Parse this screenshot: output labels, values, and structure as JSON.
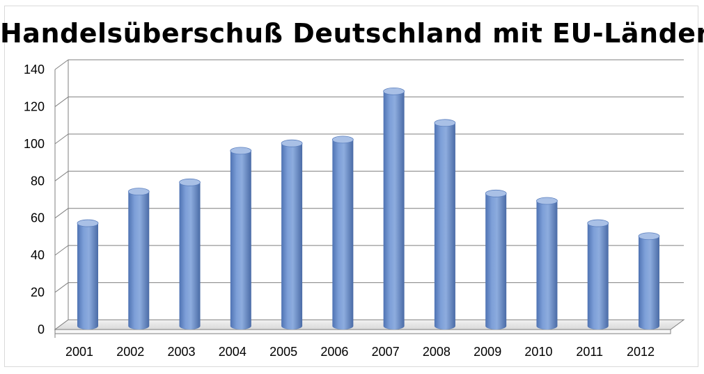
{
  "chart_data": {
    "type": "bar",
    "title": "Handelsüberschuß Deutschland mit EU-Ländern",
    "xlabel": "",
    "ylabel": "",
    "categories": [
      "2001",
      "2002",
      "2003",
      "2004",
      "2005",
      "2006",
      "2007",
      "2008",
      "2009",
      "2010",
      "2011",
      "2012"
    ],
    "values": [
      55,
      72,
      77,
      94,
      98,
      100,
      126,
      109,
      71,
      67,
      55,
      48
    ],
    "ylim": [
      0,
      140
    ],
    "yticks": [
      "0",
      "20",
      "40",
      "60",
      "80",
      "100",
      "120",
      "140"
    ],
    "grid": true,
    "legend": "none",
    "style": "3d-cylinder",
    "colors": {
      "bar": "#6b8fcb",
      "bar_dark": "#4a6ca8",
      "bar_light": "#a9c0e6",
      "grid": "#7f7f7f"
    }
  }
}
